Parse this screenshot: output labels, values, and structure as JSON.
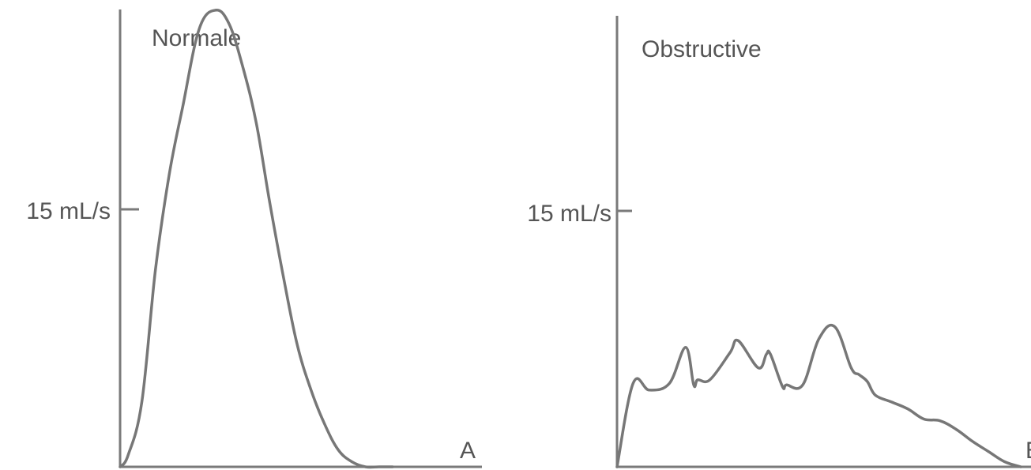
{
  "chart_data": [
    {
      "type": "line",
      "title": "Normale",
      "panel_label": "A",
      "ylabel_ticks": [
        {
          "value": 15,
          "label": "15 mL/s"
        }
      ],
      "ylim": [
        0,
        31
      ],
      "xlim": [
        0,
        1
      ],
      "series": [
        {
          "x": [
            0.0,
            0.03,
            0.08,
            0.13,
            0.18,
            0.23,
            0.29,
            0.35,
            0.4,
            0.45,
            0.5,
            0.55,
            0.6,
            0.65,
            0.7,
            0.75,
            0.8,
            0.85,
            0.9,
            0.95,
            1.0
          ],
          "y": [
            0.0,
            0.7,
            3.8,
            11.5,
            17.0,
            21.0,
            25.5,
            26.6,
            25.8,
            23.3,
            20.0,
            15.3,
            11.0,
            7.1,
            4.5,
            2.5,
            1.0,
            0.3,
            0.0,
            0.0,
            0.0
          ]
        }
      ]
    },
    {
      "type": "line",
      "title": "Obstructive",
      "panel_label": "B",
      "ylabel_ticks": [
        {
          "value": 15,
          "label": "15 mL/s"
        }
      ],
      "ylim": [
        0,
        31
      ],
      "xlim": [
        0,
        1
      ],
      "series": [
        {
          "x": [
            0.0,
            0.04,
            0.08,
            0.13,
            0.17,
            0.19,
            0.2,
            0.23,
            0.28,
            0.3,
            0.35,
            0.37,
            0.38,
            0.41,
            0.42,
            0.46,
            0.5,
            0.54,
            0.58,
            0.6,
            0.62,
            0.64,
            0.68,
            0.72,
            0.76,
            0.8,
            0.84,
            0.88,
            0.92,
            0.96,
            1.0
          ],
          "y": [
            0.0,
            4.9,
            4.5,
            4.9,
            7.0,
            4.8,
            5.1,
            5.1,
            6.7,
            7.4,
            5.8,
            6.6,
            6.6,
            4.7,
            4.8,
            4.8,
            7.5,
            8.2,
            5.8,
            5.4,
            5.0,
            4.2,
            3.8,
            3.4,
            2.8,
            2.7,
            2.2,
            1.5,
            0.9,
            0.3,
            0.0
          ]
        }
      ]
    }
  ]
}
